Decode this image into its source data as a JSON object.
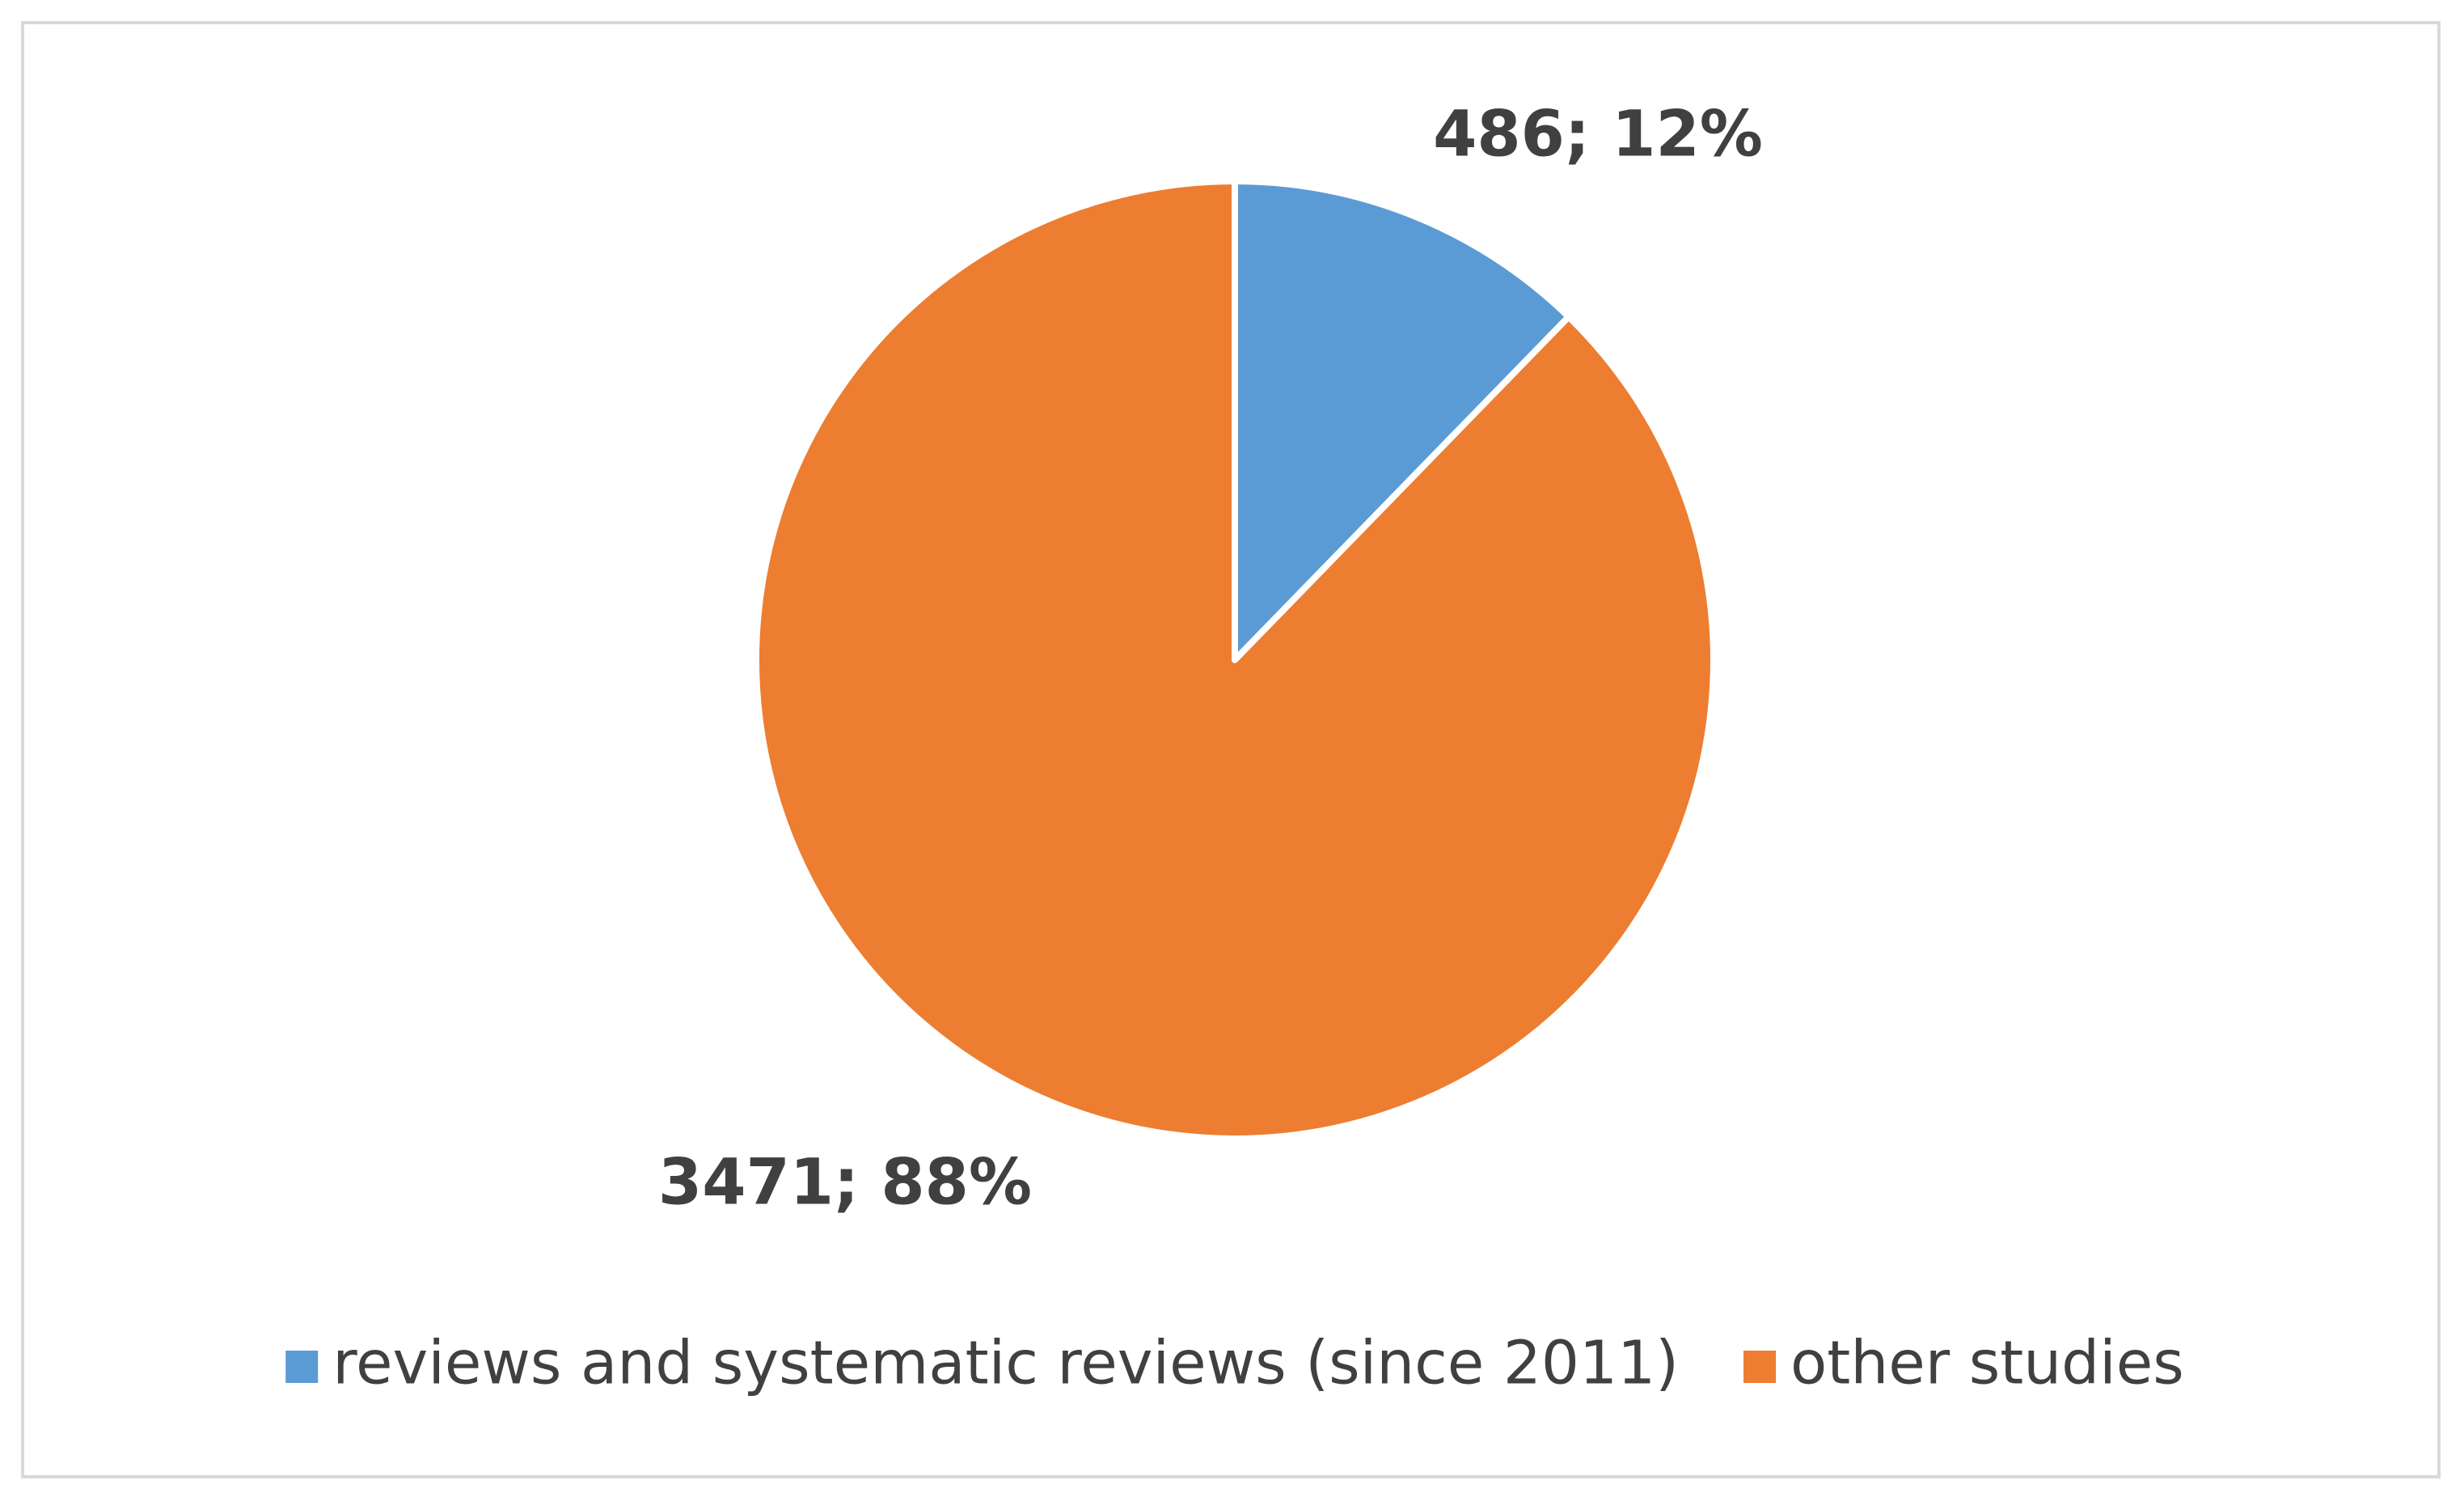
{
  "chart_data": {
    "type": "pie",
    "categories": [
      "reviews and systematic reviews (since 2011)",
      "other studies"
    ],
    "values": [
      486,
      3471
    ],
    "value_labels": [
      "486; 12%",
      "3471; 88%"
    ],
    "colors": [
      "#5b9bd5",
      "#ed7d31"
    ],
    "legend": "bottom"
  }
}
